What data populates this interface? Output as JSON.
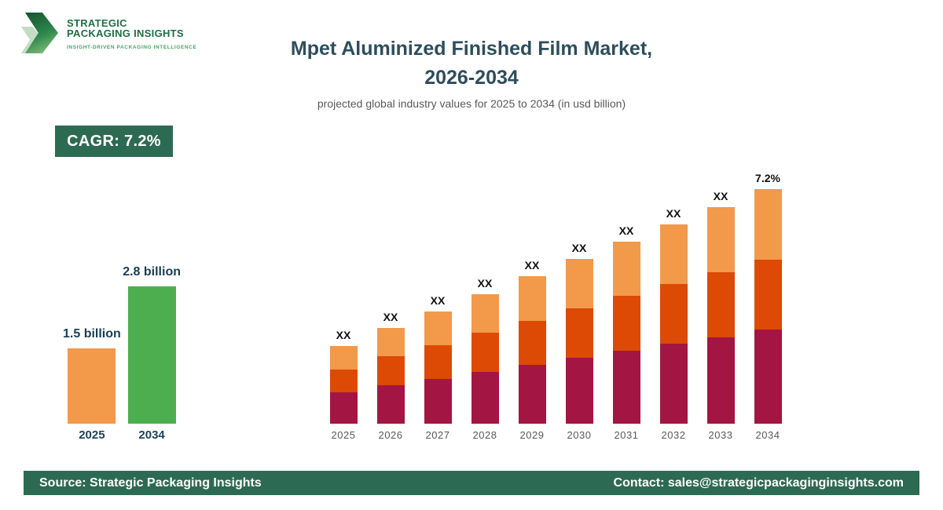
{
  "logo": {
    "line1": "STRATEGIC",
    "line2": "PACKAGING INSIGHTS",
    "tagline": "INSIGHT-DRIVEN PACKAGING INTELLIGENCE",
    "text_color": "#1d7044",
    "tagline_color": "#43a567"
  },
  "header": {
    "title_line1": "Mpet Aluminized Finished Film Market,",
    "title_line2": "2026-2034",
    "subtitle": "projected global industry values for 2025 to 2034 (in usd billion)",
    "title_color": "#2e4d5c",
    "subtitle_color": "#595959"
  },
  "cagr_badge": {
    "label": "CAGR: 7.2%",
    "background": "#2d6a52",
    "text_color": "#ffffff"
  },
  "footer": {
    "source": "Source: Strategic Packaging Insights",
    "contact": "Contact: sales@strategicpackaginginsights.com",
    "background": "#2d6a54",
    "text_color": "#ffffff"
  },
  "colors": {
    "value_label_dark_teal": "#173f54",
    "mini_year_label": "#1c4458",
    "bar_value_label": "#111111",
    "axis_label_gray": "#595959"
  },
  "chart_data": [
    {
      "type": "bar",
      "title": "Market size 2025 vs 2034",
      "categories": [
        "2025",
        "2034"
      ],
      "values": [
        1.5,
        2.8
      ],
      "value_labels": [
        "1.5 billion",
        "2.8 billion"
      ],
      "bar_colors": [
        "#f2994a",
        "#4dae4f"
      ],
      "unit": "usd billion",
      "ylim": [
        0,
        2.8
      ],
      "grid": false,
      "legend": false
    },
    {
      "type": "bar",
      "subtype": "stacked",
      "title": "Projected values by year (values undisclosed, shown as XX)",
      "categories": [
        "2025",
        "2026",
        "2027",
        "2028",
        "2029",
        "2030",
        "2031",
        "2032",
        "2033",
        "2034"
      ],
      "bar_labels": [
        "XX",
        "XX",
        "XX",
        "XX",
        "XX",
        "XX",
        "XX",
        "XX",
        "XX",
        "7.2%"
      ],
      "series": [
        {
          "name": "bottom",
          "color": "#a31543",
          "values": [
            40,
            49,
            57,
            66,
            75,
            84,
            93,
            102,
            110,
            120
          ]
        },
        {
          "name": "middle",
          "color": "#dc4a05",
          "values": [
            29,
            37,
            43,
            50,
            56,
            63,
            70,
            76,
            83,
            89
          ]
        },
        {
          "name": "top",
          "color": "#f2994a",
          "values": [
            30,
            36,
            43,
            49,
            57,
            63,
            69,
            76,
            83,
            90
          ]
        }
      ],
      "totals_relative": [
        99,
        122,
        143,
        165,
        188,
        210,
        232,
        254,
        276,
        299
      ],
      "value_scale": "relative height units (actual values not shown)",
      "grid": false,
      "legend": false,
      "annotation": "7.2%"
    }
  ]
}
